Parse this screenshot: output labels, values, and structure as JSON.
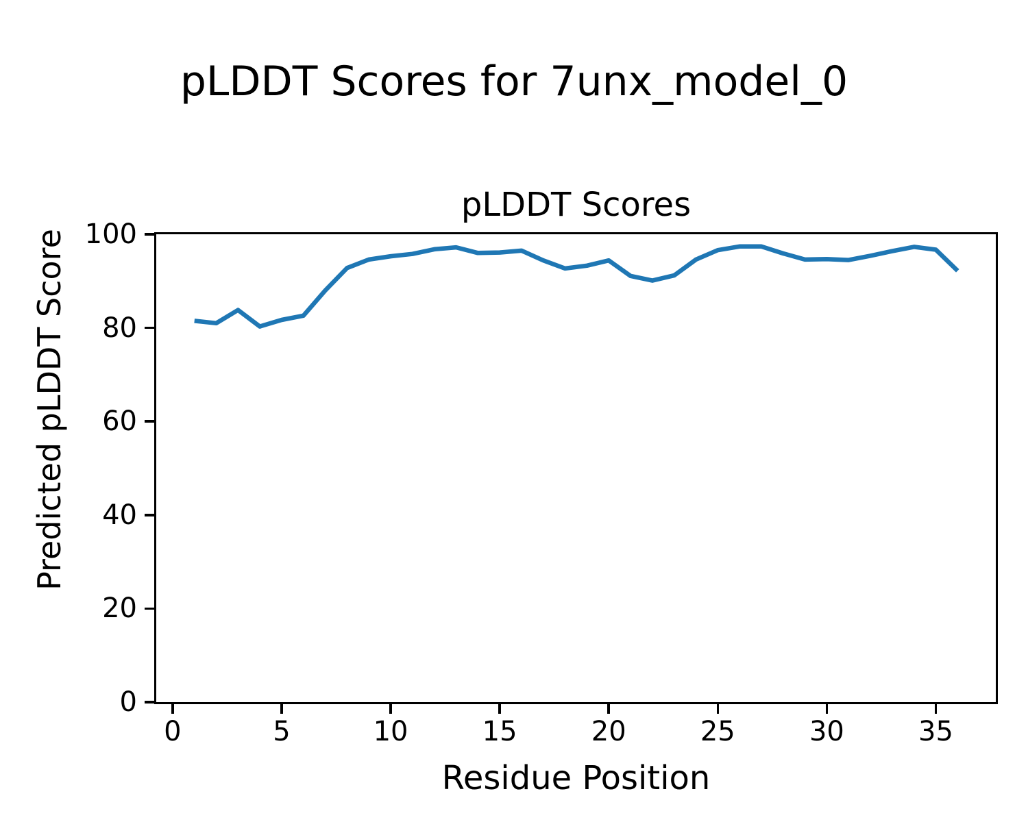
{
  "figure": {
    "suptitle": "pLDDT Scores for 7unx_model_0"
  },
  "chart_data": {
    "type": "line",
    "title": "pLDDT Scores",
    "suptitle": "pLDDT Scores for 7unx_model_0",
    "xlabel": "Residue Position",
    "ylabel": "Predicted pLDDT Score",
    "x": [
      1,
      2,
      3,
      4,
      5,
      6,
      7,
      8,
      9,
      10,
      11,
      12,
      13,
      14,
      15,
      16,
      17,
      18,
      19,
      20,
      21,
      22,
      23,
      24,
      25,
      26,
      27,
      28,
      29,
      30,
      31,
      32,
      33,
      34,
      35,
      36
    ],
    "y": [
      81.5,
      81.0,
      83.8,
      80.3,
      81.7,
      82.6,
      88.0,
      92.8,
      94.6,
      95.3,
      95.8,
      96.8,
      97.2,
      96.0,
      96.1,
      96.5,
      94.4,
      92.7,
      93.3,
      94.4,
      91.1,
      90.1,
      91.2,
      94.6,
      96.6,
      97.4,
      97.4,
      95.9,
      94.6,
      94.7,
      94.5,
      95.4,
      96.4,
      97.3,
      96.7,
      92.2
    ],
    "xlim": [
      -0.75,
      37.75
    ],
    "ylim": [
      0,
      100
    ],
    "xticks": [
      0,
      5,
      10,
      15,
      20,
      25,
      30,
      35
    ],
    "yticks": [
      0,
      20,
      40,
      60,
      80,
      100
    ],
    "grid": false,
    "legend": null,
    "line_color": "#1f77b4",
    "axis_color": "#000000",
    "background_color": "#ffffff"
  }
}
